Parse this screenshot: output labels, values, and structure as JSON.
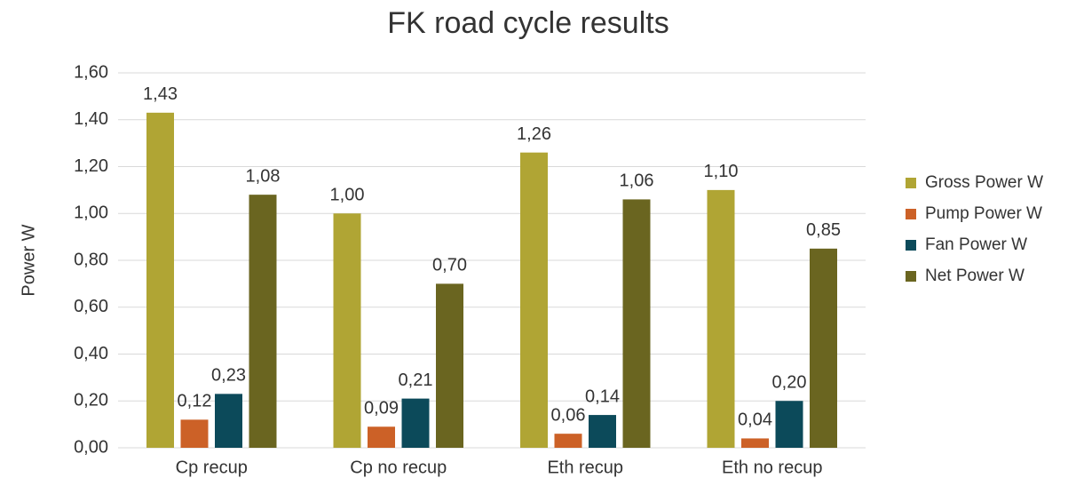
{
  "chart_data": {
    "type": "bar",
    "title": "FK road cycle results",
    "y_label": "Power W",
    "categories": [
      "Cp recup",
      "Cp no recup",
      "Eth recup",
      "Eth no recup"
    ],
    "series": [
      {
        "name": "Gross Power W",
        "color": "#b0a534",
        "values": [
          1.43,
          1.0,
          1.26,
          1.1
        ],
        "value_labels": [
          "1,43",
          "1,00",
          "1,26",
          "1,10"
        ]
      },
      {
        "name": "Pump Power W",
        "color": "#cc6127",
        "values": [
          0.12,
          0.09,
          0.06,
          0.04
        ],
        "value_labels": [
          "0,12",
          "0,09",
          "0,06",
          "0,04"
        ]
      },
      {
        "name": "Fan Power W",
        "color": "#0c4a5a",
        "values": [
          0.23,
          0.21,
          0.14,
          0.2
        ],
        "value_labels": [
          "0,23",
          "0,21",
          "0,14",
          "0,20"
        ]
      },
      {
        "name": "Net Power W",
        "color": "#6a6520",
        "values": [
          1.08,
          0.7,
          1.06,
          0.85
        ],
        "value_labels": [
          "1,08",
          "0,70",
          "1,06",
          "0,85"
        ]
      }
    ],
    "ylim": [
      0,
      1.6
    ],
    "yticks": [
      {
        "value": 0,
        "label": "0,00"
      },
      {
        "value": 0.2,
        "label": "0,20"
      },
      {
        "value": 0.4,
        "label": "0,40"
      },
      {
        "value": 0.6,
        "label": "0,60"
      },
      {
        "value": 0.8,
        "label": "0,80"
      },
      {
        "value": 1.0,
        "label": "1,00"
      },
      {
        "value": 1.2,
        "label": "1,20"
      },
      {
        "value": 1.4,
        "label": "1,40"
      },
      {
        "value": 1.6,
        "label": "1,60"
      }
    ],
    "grid": true,
    "legend": "right"
  }
}
